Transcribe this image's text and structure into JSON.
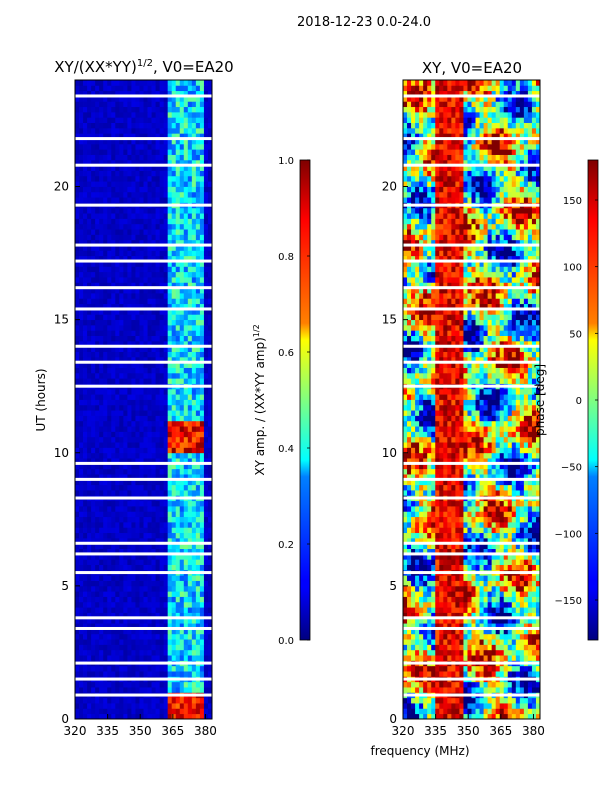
{
  "figure_title": "2018-12-23 0.0-24.0",
  "colors": {
    "background": "#ffffff",
    "missing_rows": "#ffffff",
    "jet_low": "#00007f",
    "jet_high": "#7f0000"
  },
  "chart_data": [
    {
      "type": "heatmap",
      "panel": "left",
      "title_main": "XY/(XX*YY)",
      "title_sup": "1/2",
      "title_rest": ", V0=EA20",
      "xlabel": "",
      "ylabel": "UT (hours)",
      "xlim": [
        320,
        383
      ],
      "ylim": [
        0,
        24
      ],
      "x_ticks": [
        320,
        335,
        350,
        365,
        380
      ],
      "y_ticks": [
        0,
        5,
        10,
        15,
        20
      ],
      "value_range": [
        0.0,
        1.0
      ],
      "description_of_data": "normalized XY amplitude; mostly near 0 except a bright band at ~362-380 MHz with peaks near 10.5 h and 0.3 h",
      "bright_band_mhz": [
        362,
        380
      ],
      "peak_times_hours": [
        0.3,
        10.6
      ],
      "missing_time_rows_hours": [
        0.9,
        1.5,
        2.1,
        3.4,
        3.8,
        5.5,
        6.2,
        6.6,
        8.3,
        9.0,
        9.6,
        12.5,
        13.4,
        14.0,
        15.4,
        16.2,
        17.2,
        17.8,
        19.3,
        20.8,
        21.8,
        23.4
      ]
    },
    {
      "type": "heatmap",
      "panel": "right",
      "title": "XY, V0=EA20",
      "xlabel": "frequency (MHz)",
      "ylabel": "",
      "xlim": [
        320,
        383
      ],
      "ylim": [
        0,
        24
      ],
      "x_ticks": [
        320,
        335,
        350,
        365,
        380
      ],
      "y_ticks": [
        0,
        5,
        10,
        15,
        20
      ],
      "value_range": [
        -180,
        180
      ],
      "description_of_data": "XY phase in degrees, varying across frequency and time",
      "missing_time_rows_hours": [
        0.9,
        1.5,
        2.1,
        3.4,
        3.8,
        5.5,
        6.2,
        6.6,
        8.3,
        9.0,
        9.6,
        12.5,
        13.4,
        14.0,
        15.4,
        16.2,
        17.2,
        17.8,
        19.3,
        20.8,
        21.8,
        23.4
      ]
    },
    {
      "type": "colorbar",
      "for_panel": "left",
      "label_main": "XY amp. / (XX*YY amp)",
      "label_sup": "1/2",
      "range": [
        0.0,
        1.0
      ],
      "ticks": [
        0.0,
        0.2,
        0.4,
        0.6,
        0.8,
        1.0
      ],
      "tick_labels": [
        "0.0",
        "0.2",
        "0.4",
        "0.6",
        "0.8",
        "1.0"
      ]
    },
    {
      "type": "colorbar",
      "for_panel": "right",
      "label": "phase [deg]",
      "range": [
        -180,
        180
      ],
      "ticks": [
        -150,
        -100,
        -50,
        0,
        50,
        100,
        150
      ],
      "tick_labels": [
        "−150",
        "−100",
        "−50",
        "0",
        "50",
        "100",
        "150"
      ]
    }
  ]
}
